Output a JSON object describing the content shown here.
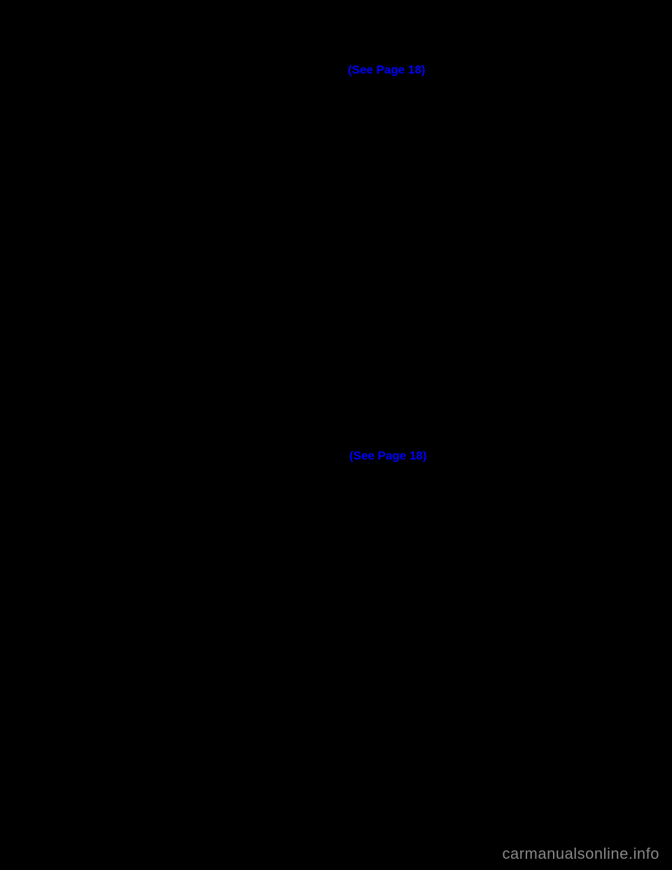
{
  "links": {
    "ref1": "(See Page 18)",
    "ref2": "(See Page 18)"
  },
  "watermark": "carmanualsonline.info",
  "colors": {
    "background": "#000000",
    "link_color": "#0000ff",
    "watermark_color": "#888888"
  }
}
